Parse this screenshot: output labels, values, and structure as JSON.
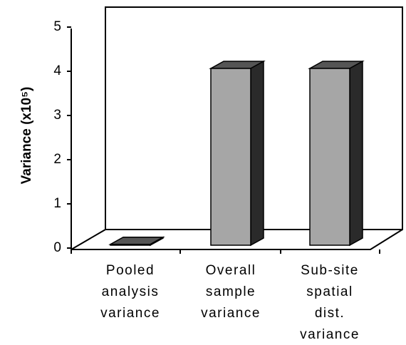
{
  "chart_data": {
    "type": "bar3d",
    "ylabel": "Variance (x10⁵)",
    "categories": [
      "Pooled analysis variance",
      "Overall sample variance",
      "Sub-site spatial dist. variance"
    ],
    "values": [
      0.02,
      4.0,
      4.0
    ],
    "color": "#a6a6a6",
    "ylim": [
      0,
      5
    ],
    "yticks": [
      0,
      1,
      2,
      3,
      4,
      5
    ]
  }
}
